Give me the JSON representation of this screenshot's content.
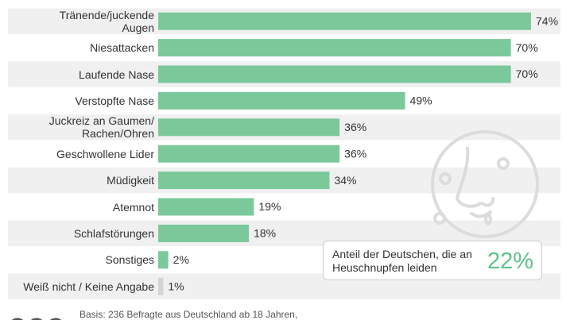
{
  "chart_data": {
    "type": "bar",
    "orientation": "horizontal",
    "categories": [
      "Tränende/juckende\nAugen",
      "Niesattacken",
      "Laufende Nase",
      "Verstopfte Nase",
      "Juckreiz an Gaumen/\nRachen/Ohren",
      "Geschwollene Lider",
      "Müdigkeit",
      "Atemnot",
      "Schlafstörungen",
      "Sonstiges",
      "Weiß nicht / Keine Angabe"
    ],
    "values": [
      74,
      70,
      70,
      49,
      36,
      36,
      34,
      19,
      18,
      2,
      1
    ],
    "value_labels": [
      "74%",
      "70%",
      "70%",
      "49%",
      "36%",
      "36%",
      "34%",
      "19%",
      "18%",
      "2%",
      "1%"
    ],
    "colors": [
      "#7bc99b",
      "#7bc99b",
      "#7bc99b",
      "#7bc99b",
      "#7bc99b",
      "#7bc99b",
      "#7bc99b",
      "#7bc99b",
      "#7bc99b",
      "#7bc99b",
      "#d4d4d4"
    ],
    "xlim": [
      0,
      100
    ],
    "inset": {
      "text": "Anteil der Deutschen, die an Heuschnupfen leiden",
      "value": 22,
      "value_label": "22%"
    },
    "footnote": "Basis: 236 Befragte aus Deutschland ab 18 Jahren,"
  }
}
